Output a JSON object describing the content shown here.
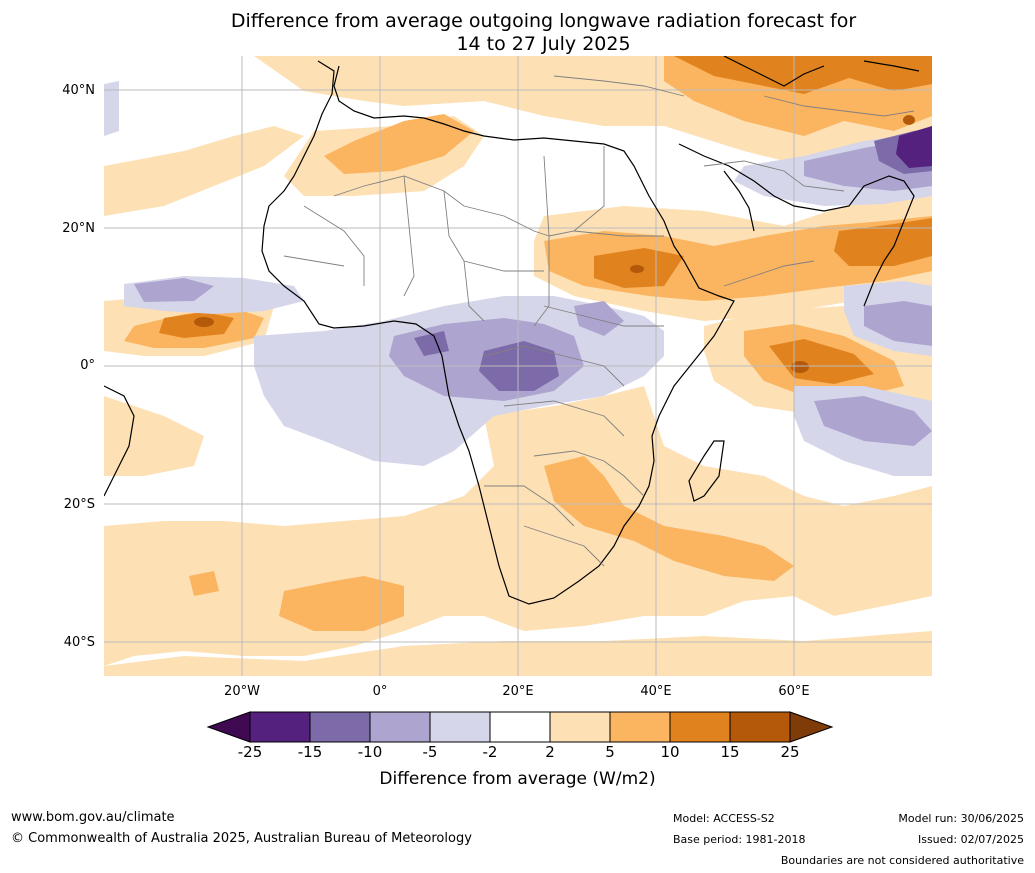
{
  "title_line1": "Difference from average outgoing longwave radiation forecast for",
  "title_line2": "14 to 27 July 2025",
  "lat_labels": [
    "40°N",
    "20°N",
    "0°",
    "20°S",
    "40°S"
  ],
  "lon_labels": [
    "20°W",
    "0°",
    "20°E",
    "40°E",
    "60°E"
  ],
  "colorbar": {
    "ticks": [
      "-25",
      "-15",
      "-10",
      "-5",
      "-2",
      "2",
      "5",
      "10",
      "15",
      "25"
    ],
    "label": "Difference from average (W/m2)",
    "colors": [
      "#3f0a52",
      "#55217f",
      "#7d6aa8",
      "#ada5cf",
      "#d6d6ea",
      "#ffffff",
      "#fde0b4",
      "#fbb45f",
      "#e0821d",
      "#b35909",
      "#7f3b08"
    ]
  },
  "footer": {
    "url": "www.bom.gov.au/climate",
    "copyright": "© Commonwealth of Australia 2025, Australian Bureau of Meteorology",
    "model": "Model: ACCESS-S2",
    "base_period": "Base period: 1981-2018",
    "model_run": "Model run: 30/06/2025",
    "issued": "Issued: 02/07/2025",
    "disclaimer": "Boundaries are not considered authoritative"
  }
}
